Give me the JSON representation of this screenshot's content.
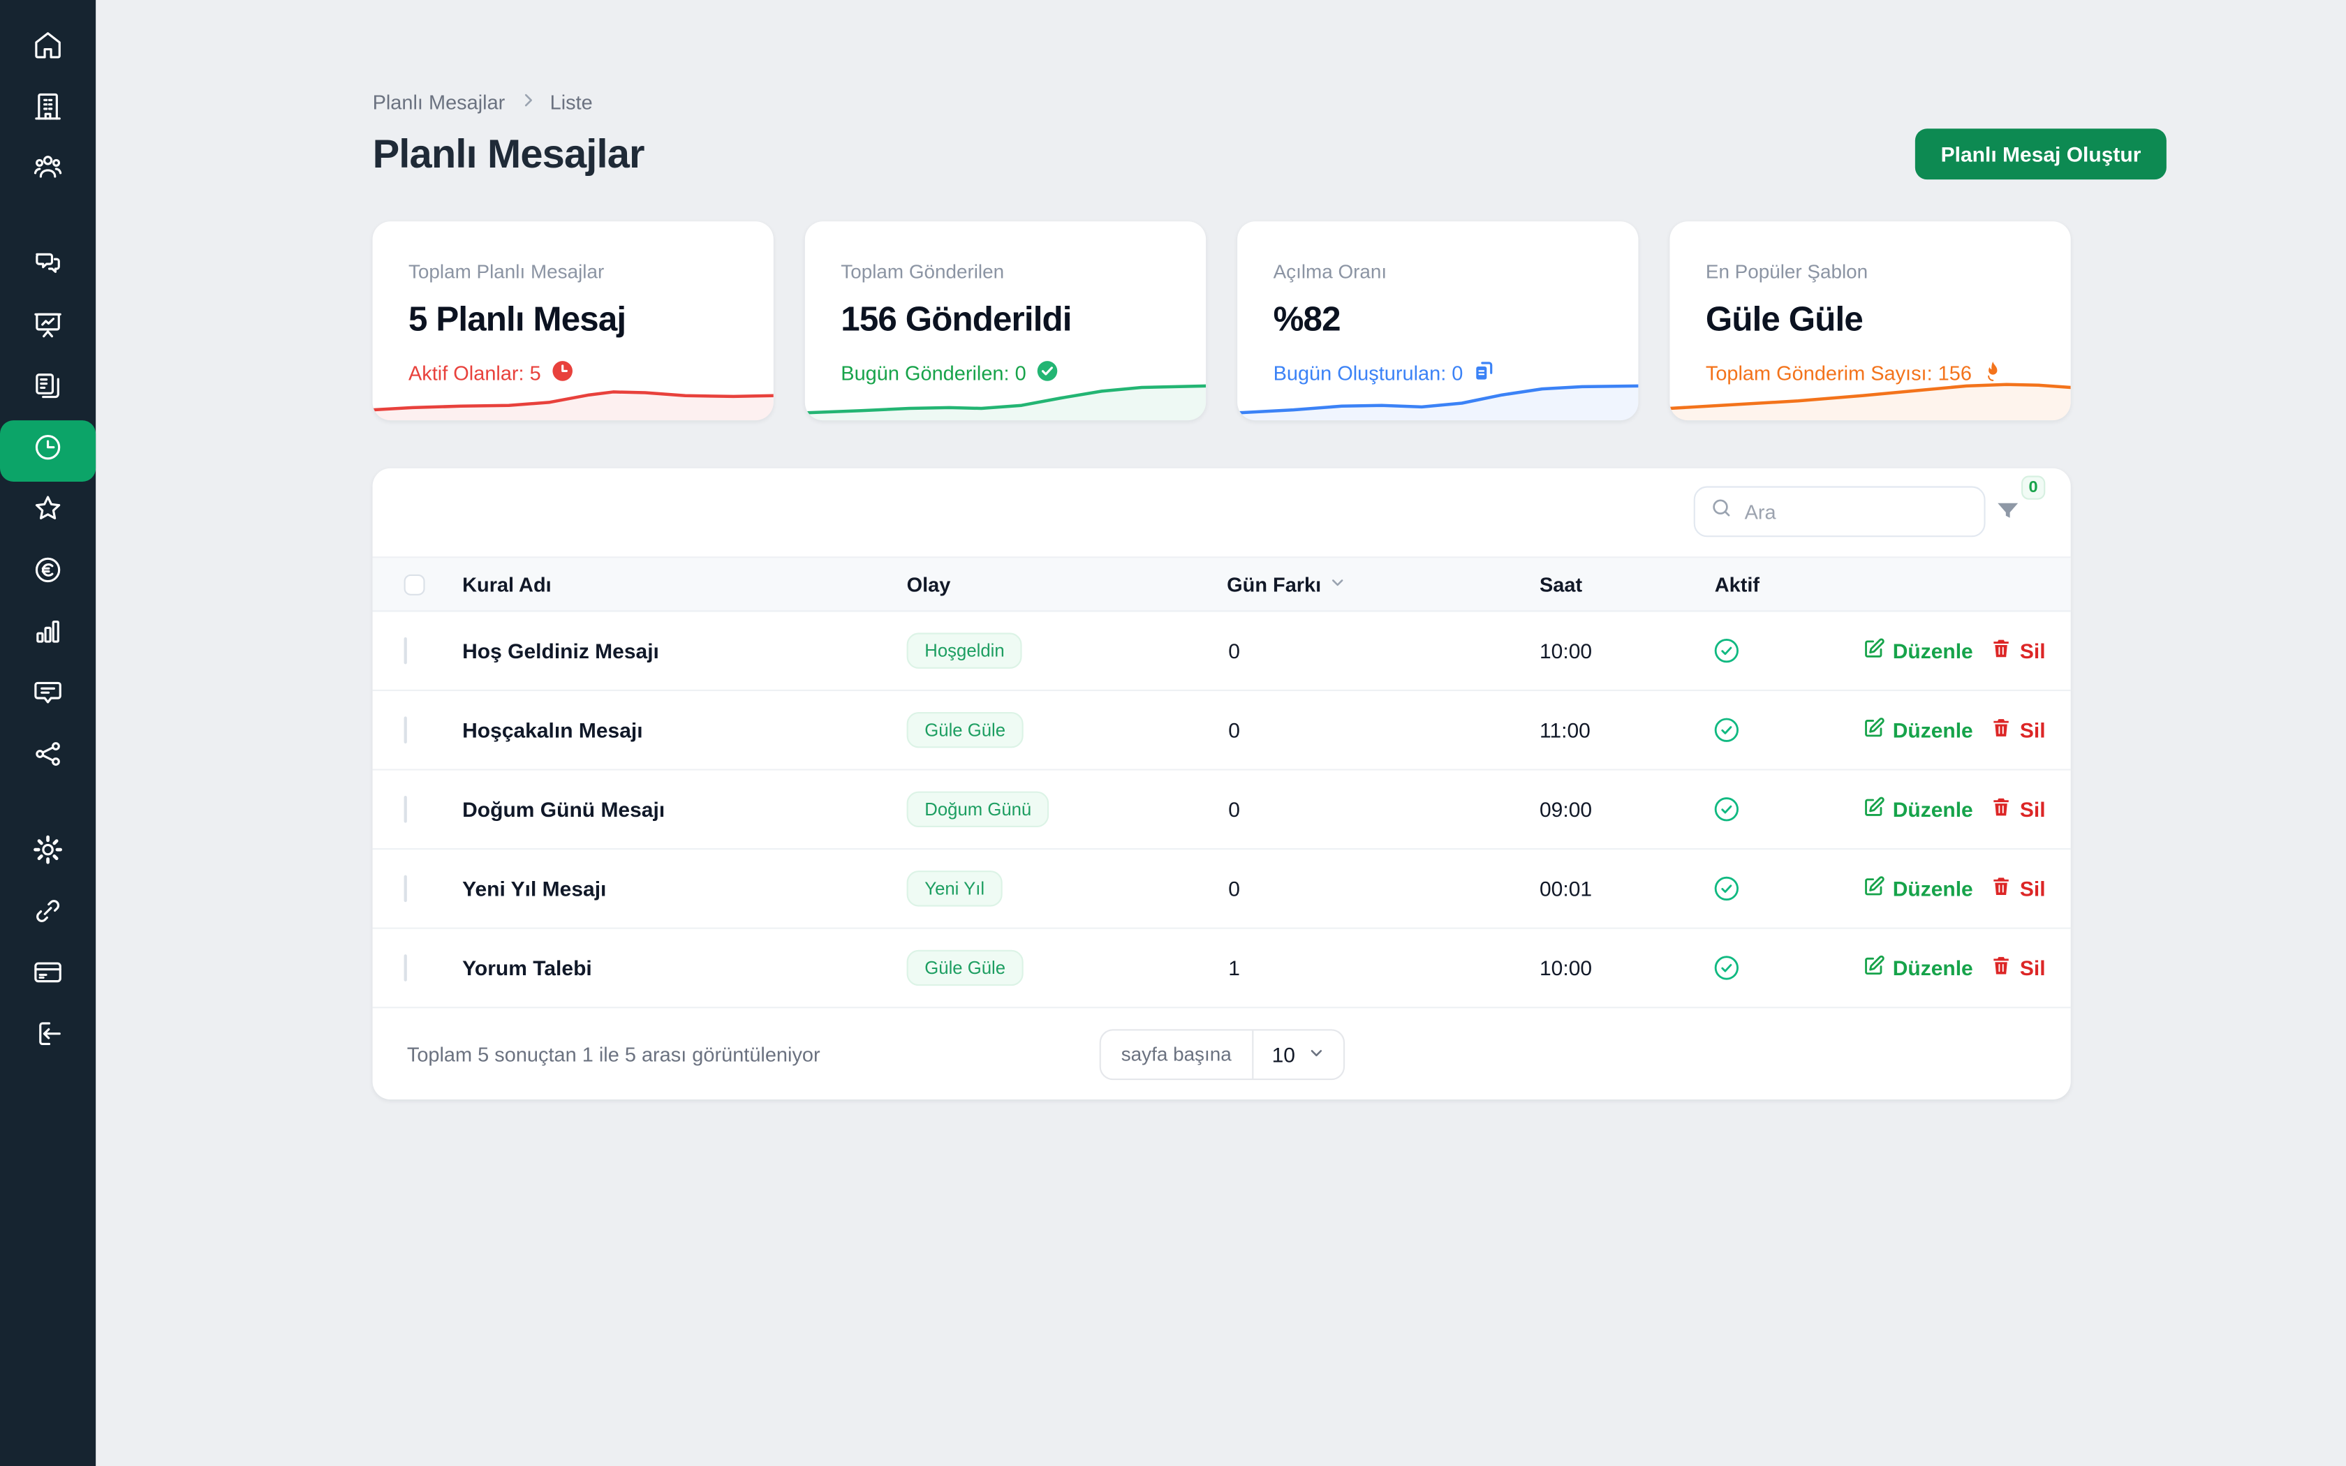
{
  "colors": {
    "sidebar_bg": "#162430",
    "sidebar_active_green": "#0ca468",
    "button_green": "#0d8a52",
    "badge_green": "#1d9e61",
    "edit_green": "#16a34a",
    "delete_red": "#dc2626",
    "check_green": "#10b981",
    "page_bg": "#edeff2"
  },
  "sidebar": {
    "items": [
      {
        "icon": "home-icon",
        "active": false
      },
      {
        "icon": "building-icon",
        "active": false
      },
      {
        "icon": "users-icon",
        "active": false
      },
      {
        "icon": "chat-bubbles-icon",
        "active": false
      },
      {
        "icon": "presentation-chart-icon",
        "active": false
      },
      {
        "icon": "templates-copy-icon",
        "active": false
      },
      {
        "icon": "clock-icon",
        "active": true
      },
      {
        "icon": "star-icon",
        "active": false
      },
      {
        "icon": "euro-coin-icon",
        "active": false
      },
      {
        "icon": "bar-chart-icon",
        "active": false
      },
      {
        "icon": "comment-lines-icon",
        "active": false
      },
      {
        "icon": "share-nodes-icon",
        "active": false
      },
      {
        "icon": "gear-icon",
        "active": false
      },
      {
        "icon": "link-icon",
        "active": false
      },
      {
        "icon": "credit-card-icon",
        "active": false
      },
      {
        "icon": "logout-icon",
        "active": false
      }
    ]
  },
  "breadcrumb": {
    "items": [
      "Planlı Mesajlar",
      "Liste"
    ]
  },
  "header": {
    "title": "Planlı Mesajlar",
    "create_button": "Planlı Mesaj Oluştur"
  },
  "stats": [
    {
      "label": "Toplam Planlı Mesajlar",
      "value": "5 Planlı Mesaj",
      "sub": "Aktif Olanlar: 5",
      "accent": "#e8413c",
      "icon": "clock-badge-icon",
      "spark": [
        [
          0,
          27
        ],
        [
          10,
          25.5
        ],
        [
          22,
          24.5
        ],
        [
          34,
          24
        ],
        [
          44,
          22
        ],
        [
          54,
          17
        ],
        [
          60,
          15
        ],
        [
          68,
          15.5
        ],
        [
          78,
          17.5
        ],
        [
          90,
          18
        ],
        [
          100,
          17.5
        ]
      ]
    },
    {
      "label": "Toplam Gönderilen",
      "value": "156 Gönderildi",
      "sub": "Bugün Gönderilen: 0",
      "accent": "#23b573",
      "icon": "check-circle-badge-icon",
      "spark": [
        [
          0,
          29
        ],
        [
          14,
          27.5
        ],
        [
          26,
          26
        ],
        [
          36,
          25.5
        ],
        [
          44,
          26
        ],
        [
          54,
          24
        ],
        [
          64,
          19
        ],
        [
          74,
          14.5
        ],
        [
          84,
          12
        ],
        [
          100,
          11
        ]
      ]
    },
    {
      "label": "Açılma Oranı",
      "value": "%82",
      "sub": "Bugün Oluşturulan: 0",
      "accent": "#3b82f6",
      "icon": "copy-badge-icon",
      "spark": [
        [
          0,
          29
        ],
        [
          14,
          27
        ],
        [
          26,
          24.5
        ],
        [
          36,
          24
        ],
        [
          46,
          25
        ],
        [
          56,
          22.5
        ],
        [
          66,
          17
        ],
        [
          76,
          13
        ],
        [
          86,
          11.5
        ],
        [
          100,
          11
        ]
      ]
    },
    {
      "label": "En Popüler Şablon",
      "value": "Güle Güle",
      "sub": "Toplam Gönderim Sayısı: 156",
      "accent": "#f3731b",
      "icon": "flame-icon",
      "spark": [
        [
          0,
          26
        ],
        [
          16,
          23.5
        ],
        [
          32,
          21
        ],
        [
          48,
          17.5
        ],
        [
          62,
          14
        ],
        [
          74,
          11
        ],
        [
          84,
          10
        ],
        [
          92,
          10.5
        ],
        [
          100,
          12
        ]
      ]
    }
  ],
  "table": {
    "search_placeholder": "Ara",
    "filter_badge": "0",
    "headers": {
      "name": "Kural Adı",
      "event": "Olay",
      "day_diff": "Gün Farkı",
      "time": "Saat",
      "active": "Aktif"
    },
    "actions": {
      "edit": "Düzenle",
      "delete": "Sil"
    },
    "rows": [
      {
        "name": "Hoş Geldiniz Mesajı",
        "event": "Hoşgeldin",
        "day_diff": "0",
        "time": "10:00",
        "active": true
      },
      {
        "name": "Hoşçakalın Mesajı",
        "event": "Güle Güle",
        "day_diff": "0",
        "time": "11:00",
        "active": true
      },
      {
        "name": "Doğum Günü Mesajı",
        "event": "Doğum Günü",
        "day_diff": "0",
        "time": "09:00",
        "active": true
      },
      {
        "name": "Yeni Yıl Mesajı",
        "event": "Yeni Yıl",
        "day_diff": "0",
        "time": "00:01",
        "active": true
      },
      {
        "name": "Yorum Talebi",
        "event": "Güle Güle",
        "day_diff": "1",
        "time": "10:00",
        "active": true
      }
    ],
    "footer": {
      "summary": "Toplam 5 sonuçtan 1 ile 5 arası görüntüleniyor",
      "per_page_label": "sayfa başına",
      "per_page_value": "10"
    }
  }
}
